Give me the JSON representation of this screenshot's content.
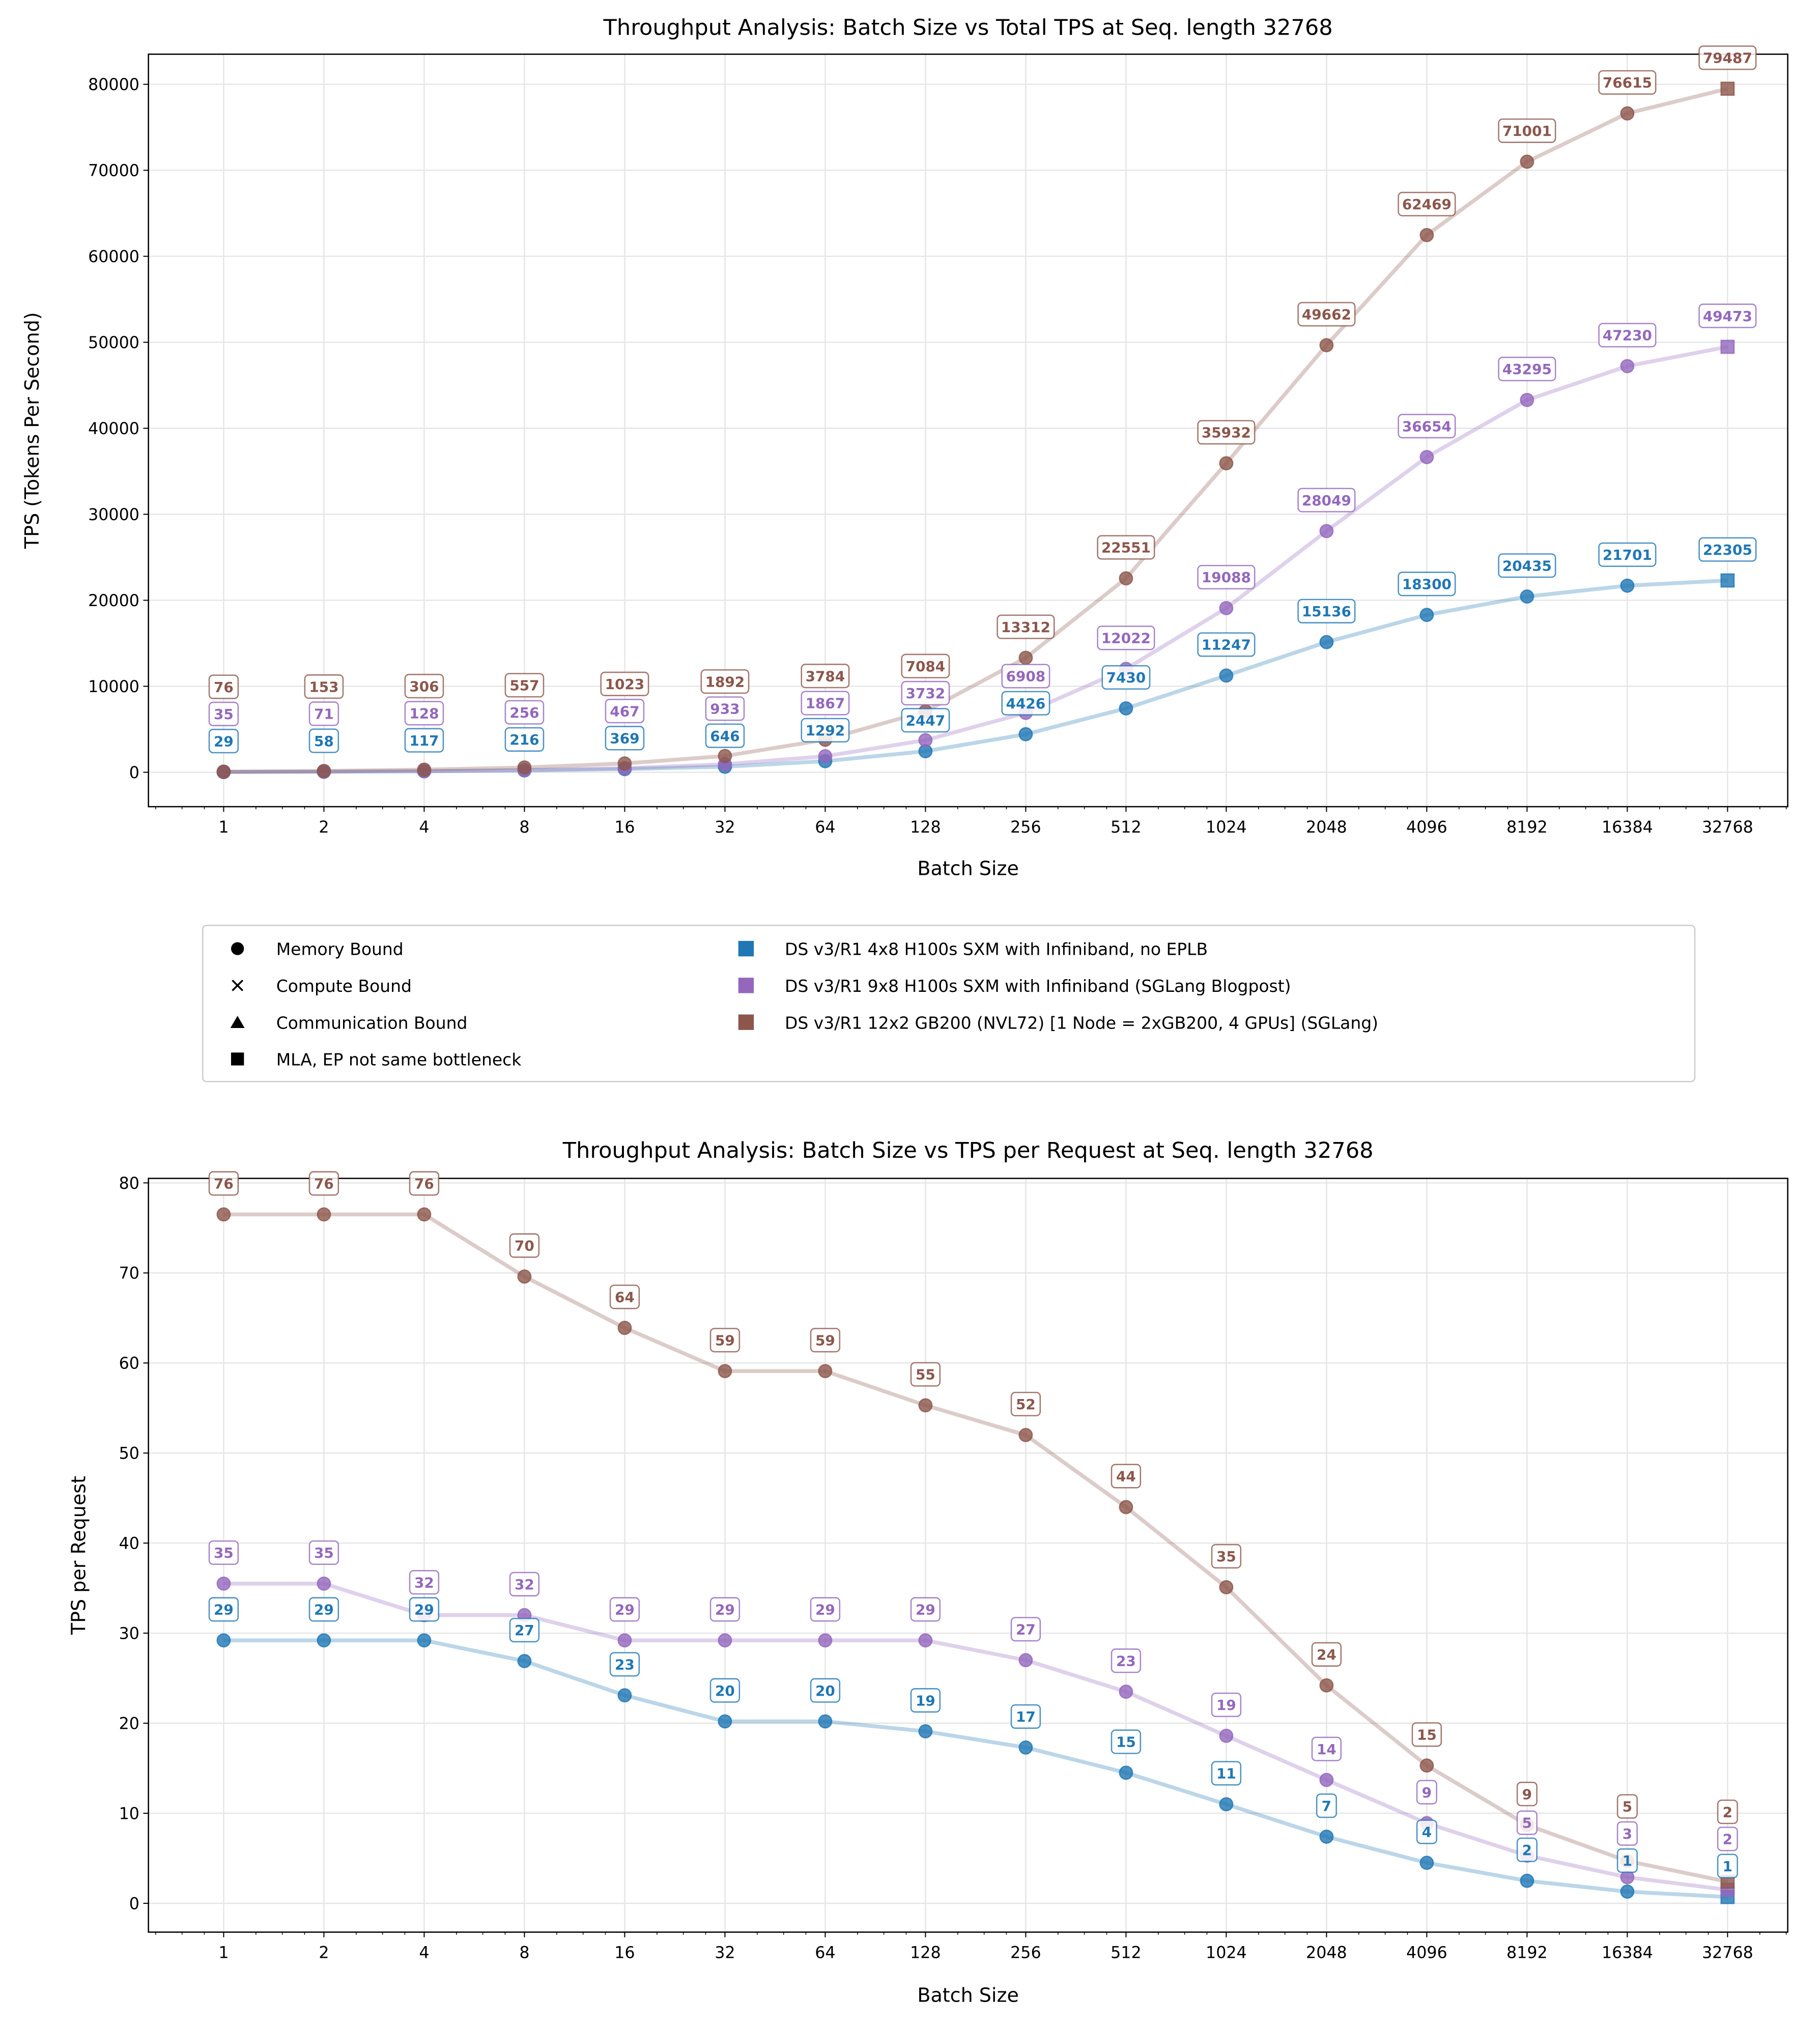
{
  "colors": {
    "blue": "#1f77b4",
    "purple": "#9467bd",
    "brown": "#8c564b"
  },
  "legend": {
    "markers": [
      {
        "symbol": "circle",
        "label": "Memory Bound"
      },
      {
        "symbol": "x",
        "label": "Compute Bound"
      },
      {
        "symbol": "triangle",
        "label": "Communication Bound"
      },
      {
        "symbol": "square",
        "label": "MLA, EP not same bottleneck"
      }
    ],
    "series": [
      {
        "color": "#1f77b4",
        "label": "DS v3/R1 4x8 H100s SXM with Infiniband, no EPLB"
      },
      {
        "color": "#9467bd",
        "label": "DS v3/R1 9x8 H100s SXM with Infiniband (SGLang Blogpost)"
      },
      {
        "color": "#8c564b",
        "label": "DS v3/R1 12x2 GB200 (NVL72) [1 Node = 2xGB200, 4 GPUs] (SGLang)"
      }
    ]
  },
  "chart_data": [
    {
      "type": "line",
      "title": "Throughput Analysis: Batch Size vs Total TPS at Seq. length 32768",
      "xlabel": "Batch Size",
      "ylabel": "TPS (Tokens Per Second)",
      "xscale": "log2",
      "x": [
        1,
        2,
        4,
        8,
        16,
        32,
        64,
        128,
        256,
        512,
        1024,
        2048,
        4096,
        8192,
        16384,
        32768
      ],
      "xticks": [
        "1",
        "2",
        "4",
        "8",
        "16",
        "32",
        "64",
        "128",
        "256",
        "512",
        "1024",
        "2048",
        "4096",
        "8192",
        "16384",
        "32768"
      ],
      "yticks": [
        0,
        10000,
        20000,
        30000,
        40000,
        50000,
        60000,
        70000,
        80000
      ],
      "ylim": [
        -4000,
        83500
      ],
      "grid": true,
      "series": [
        {
          "name": "DS v3/R1 4x8 H100s SXM with Infiniband, no EPLB",
          "color": "#1f77b4",
          "values": [
            29,
            58,
            117,
            216,
            369,
            646,
            1292,
            2447,
            4426,
            7430,
            11247,
            15136,
            18300,
            20435,
            21701,
            22305
          ],
          "labels": [
            "29",
            "58",
            "117",
            "216",
            "369",
            "646",
            "1292",
            "2447",
            "4426",
            "7430",
            "11247",
            "15136",
            "18300",
            "20435",
            "21701",
            "22305"
          ],
          "markers": [
            "circle",
            "circle",
            "circle",
            "circle",
            "circle",
            "circle",
            "circle",
            "circle",
            "circle",
            "circle",
            "circle",
            "circle",
            "circle",
            "circle",
            "circle",
            "square"
          ]
        },
        {
          "name": "DS v3/R1 9x8 H100s SXM with Infiniband (SGLang Blogpost)",
          "color": "#9467bd",
          "values": [
            35,
            71,
            128,
            256,
            467,
            933,
            1867,
            3732,
            6908,
            12022,
            19088,
            28049,
            36654,
            43295,
            47230,
            49473
          ],
          "labels": [
            "35",
            "71",
            "128",
            "256",
            "467",
            "933",
            "1867",
            "3732",
            "6908",
            "12022",
            "19088",
            "28049",
            "36654",
            "43295",
            "47230",
            "49473"
          ],
          "markers": [
            "circle",
            "circle",
            "circle",
            "circle",
            "circle",
            "circle",
            "circle",
            "circle",
            "circle",
            "circle",
            "circle",
            "circle",
            "circle",
            "circle",
            "circle",
            "square"
          ]
        },
        {
          "name": "DS v3/R1 12x2 GB200 (NVL72) [1 Node = 2xGB200, 4 GPUs] (SGLang)",
          "color": "#8c564b",
          "values": [
            76,
            153,
            306,
            557,
            1023,
            1892,
            3784,
            7084,
            13312,
            22551,
            35932,
            49662,
            62469,
            71001,
            76615,
            79487
          ],
          "labels": [
            "76",
            "153",
            "306",
            "557",
            "1023",
            "1892",
            "3784",
            "7084",
            "13312",
            "22551",
            "35932",
            "49662",
            "62469",
            "71001",
            "76615",
            "79487"
          ],
          "markers": [
            "circle",
            "circle",
            "circle",
            "circle",
            "circle",
            "circle",
            "circle",
            "circle",
            "circle",
            "circle",
            "circle",
            "circle",
            "circle",
            "circle",
            "circle",
            "square"
          ]
        }
      ]
    },
    {
      "type": "line",
      "title": "Throughput Analysis: Batch Size vs TPS per Request at Seq. length 32768",
      "xlabel": "Batch Size",
      "ylabel": "TPS per Request",
      "xscale": "log2",
      "x": [
        1,
        2,
        4,
        8,
        16,
        32,
        64,
        128,
        256,
        512,
        1024,
        2048,
        4096,
        8192,
        16384,
        32768
      ],
      "xticks": [
        "1",
        "2",
        "4",
        "8",
        "16",
        "32",
        "64",
        "128",
        "256",
        "512",
        "1024",
        "2048",
        "4096",
        "8192",
        "16384",
        "32768"
      ],
      "yticks": [
        0,
        10,
        20,
        30,
        40,
        50,
        60,
        70,
        80
      ],
      "ylim": [
        -3.2,
        80.5
      ],
      "grid": true,
      "series": [
        {
          "name": "DS v3/R1 4x8 H100s SXM with Infiniband, no EPLB",
          "color": "#1f77b4",
          "values": [
            29.2,
            29.2,
            29.2,
            26.9,
            23.1,
            20.2,
            20.2,
            19.1,
            17.3,
            14.5,
            11.0,
            7.4,
            4.5,
            2.5,
            1.3,
            0.7
          ],
          "labels": [
            "29",
            "29",
            "29",
            "27",
            "23",
            "20",
            "20",
            "19",
            "17",
            "15",
            "11",
            "7",
            "4",
            "2",
            "1",
            "1"
          ],
          "markers": [
            "circle",
            "circle",
            "circle",
            "circle",
            "circle",
            "circle",
            "circle",
            "circle",
            "circle",
            "circle",
            "circle",
            "circle",
            "circle",
            "circle",
            "circle",
            "square"
          ]
        },
        {
          "name": "DS v3/R1 9x8 H100s SXM with Infiniband (SGLang Blogpost)",
          "color": "#9467bd",
          "values": [
            35.5,
            35.5,
            32.0,
            32.0,
            29.2,
            29.2,
            29.2,
            29.2,
            27.0,
            23.5,
            18.6,
            13.7,
            8.9,
            5.3,
            2.9,
            1.5
          ],
          "labels": [
            "35",
            "35",
            "32",
            "32",
            "29",
            "29",
            "29",
            "29",
            "27",
            "23",
            "19",
            "14",
            "9",
            "5",
            "3",
            "2"
          ],
          "markers": [
            "circle",
            "circle",
            "circle",
            "circle",
            "circle",
            "circle",
            "circle",
            "circle",
            "circle",
            "circle",
            "circle",
            "circle",
            "circle",
            "circle",
            "circle",
            "square"
          ]
        },
        {
          "name": "DS v3/R1 12x2 GB200 (NVL72) [1 Node = 2xGB200, 4 GPUs] (SGLang)",
          "color": "#8c564b",
          "values": [
            76.5,
            76.5,
            76.5,
            69.6,
            63.9,
            59.1,
            59.1,
            55.3,
            52.0,
            44.0,
            35.1,
            24.2,
            15.3,
            8.7,
            4.7,
            2.4
          ],
          "labels": [
            "76",
            "76",
            "76",
            "70",
            "64",
            "59",
            "59",
            "55",
            "52",
            "44",
            "35",
            "24",
            "15",
            "9",
            "5",
            "2"
          ],
          "markers": [
            "circle",
            "circle",
            "circle",
            "circle",
            "circle",
            "circle",
            "circle",
            "circle",
            "circle",
            "circle",
            "circle",
            "circle",
            "circle",
            "circle",
            "circle",
            "square"
          ]
        }
      ]
    }
  ]
}
